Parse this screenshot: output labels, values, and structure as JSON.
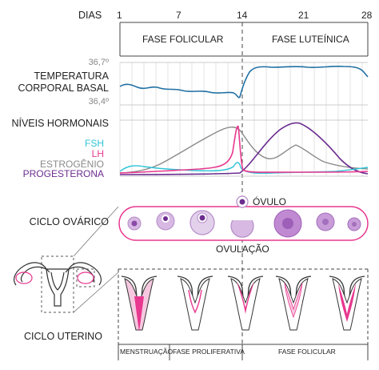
{
  "days": {
    "label": "DIAS",
    "ticks": [
      "1",
      "7",
      "14",
      "21",
      "28"
    ]
  },
  "phases": {
    "follicular": "FASE FOLICULAR",
    "luteal": "FASE LUTEÍNICA"
  },
  "temperature": {
    "title_line1": "TEMPERATURA",
    "title_line2": "CORPORAL BASAL",
    "max_label": "36,7º",
    "min_label": "36,4º",
    "color": "#1f6fa3"
  },
  "hormones": {
    "title": "NÍVEIS HORMONAIS",
    "fsh": {
      "label": "FSH",
      "color": "#2ec4d6"
    },
    "lh": {
      "label": "LH",
      "color": "#e8388f"
    },
    "estrogen": {
      "label": "ESTROGÊNIO",
      "color": "#8a8a8a"
    },
    "progesterone": {
      "label": "PROGESTERONA",
      "color": "#6b2d8f"
    }
  },
  "ovarian": {
    "title": "CICLO OVÁRICO",
    "ovum_label": "ÓVULO",
    "ovulation_label": "OVULAÇÃO"
  },
  "uterine": {
    "title": "CICLO UTERINO",
    "phases": [
      "MENSTRUAÇÃO",
      "FASE PROLIFERATIVA",
      "FASE FOLICULAR"
    ]
  },
  "colors": {
    "pink": "#e8388f",
    "purple": "#6b2d8f",
    "lilac": "#c8a6d6",
    "pale_pink": "#f6c8e0",
    "grid": "#e3e3e3",
    "axis": "#444444"
  }
}
